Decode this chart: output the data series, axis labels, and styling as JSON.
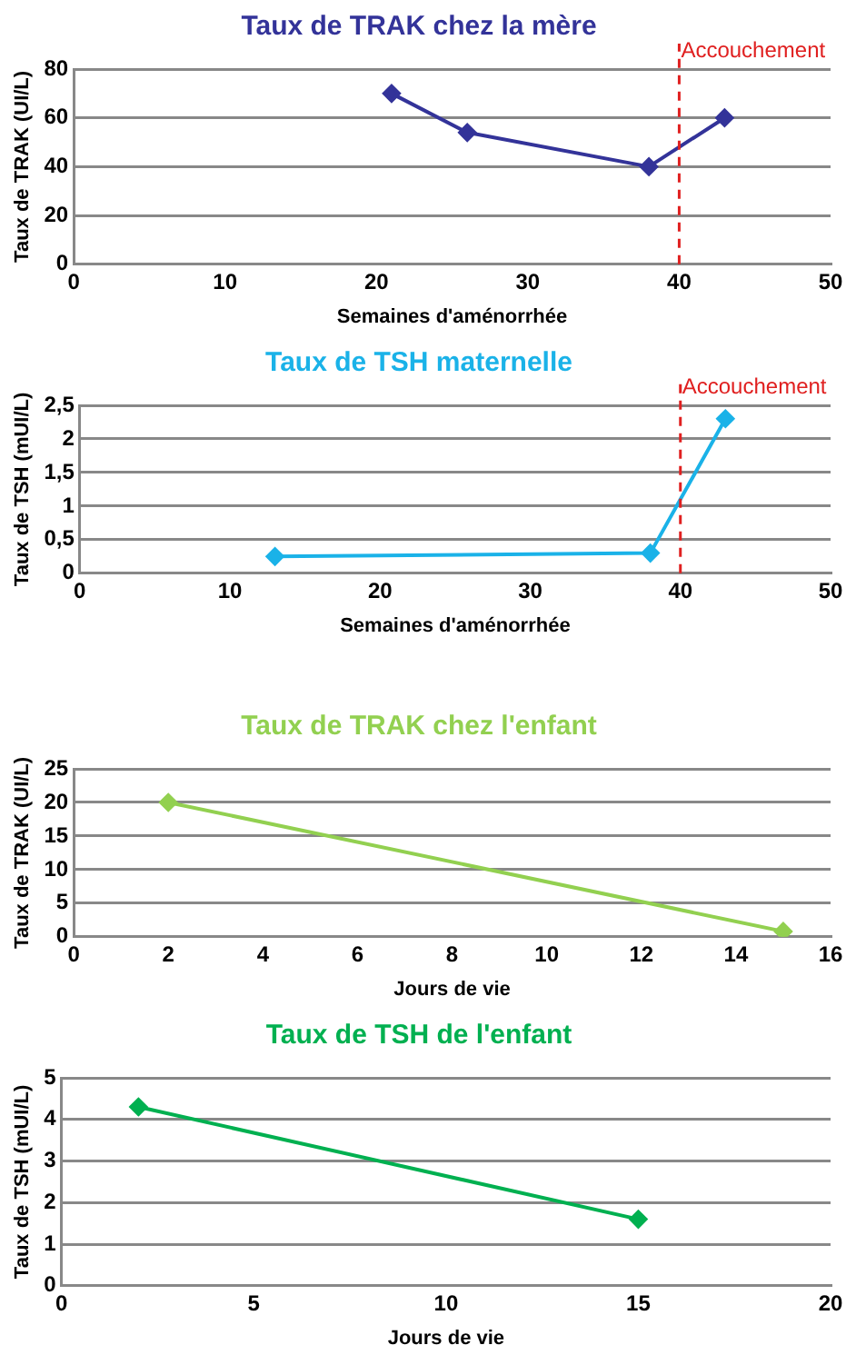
{
  "chart_data": [
    {
      "type": "line",
      "title": "Taux de TRAK chez la mère",
      "xlabel": "Semaines d'aménorrhée",
      "ylabel": "Taux de TRAK (UI/L)",
      "xlim": [
        0,
        50
      ],
      "xticks": [
        0,
        10,
        20,
        30,
        40,
        50
      ],
      "ylim": [
        0,
        80
      ],
      "yticks": [
        0,
        20,
        40,
        60,
        80
      ],
      "grid": "y",
      "marker": "diamond",
      "legend": false,
      "series": [
        {
          "color": "#333399",
          "x": [
            21,
            26,
            38,
            43
          ],
          "values": [
            70,
            54,
            40,
            60
          ]
        }
      ],
      "ref_lines": [
        {
          "axis": "x",
          "value": 40,
          "label": "Accouchement",
          "color": "#e02020",
          "line_style": "dashed"
        }
      ]
    },
    {
      "type": "line",
      "title": "Taux de TSH maternelle",
      "xlabel": "Semaines d'aménorrhée",
      "ylabel": "Taux de TSH (mUI/L)",
      "xlim": [
        0,
        50
      ],
      "xticks": [
        0,
        10,
        20,
        30,
        40,
        50
      ],
      "ylim": [
        0,
        2.5
      ],
      "yticks": [
        0,
        {
          "value": 0.5,
          "label": "0,5"
        },
        1,
        {
          "value": 1.5,
          "label": "1,5"
        },
        2,
        {
          "value": 2.5,
          "label": "2,5"
        }
      ],
      "grid": "y",
      "marker": "diamond",
      "legend": false,
      "series": [
        {
          "color": "#1ab2e8",
          "x": [
            13,
            38,
            43
          ],
          "values": [
            0.25,
            0.3,
            2.3
          ]
        }
      ],
      "ref_lines": [
        {
          "axis": "x",
          "value": 40,
          "label": "Accouchement",
          "color": "#e02020",
          "line_style": "dashed"
        }
      ]
    },
    {
      "type": "line",
      "title": "Taux de TRAK chez l'enfant",
      "xlabel": "Jours de vie",
      "ylabel": "Taux de TRAK (UI/L)",
      "xlim": [
        0,
        16
      ],
      "xticks": [
        0,
        2,
        4,
        6,
        8,
        10,
        12,
        14,
        16
      ],
      "ylim": [
        0,
        25
      ],
      "yticks": [
        0,
        5,
        10,
        15,
        20,
        25
      ],
      "grid": "y",
      "marker": "diamond",
      "legend": false,
      "series": [
        {
          "color": "#92d050",
          "x": [
            2,
            15
          ],
          "values": [
            20,
            0.8
          ]
        }
      ]
    },
    {
      "type": "line",
      "title": "Taux de TSH de l'enfant",
      "xlabel": "Jours de vie",
      "ylabel": "Taux de TSH (mUI/L)",
      "xlim": [
        0,
        20
      ],
      "xticks": [
        0,
        5,
        10,
        15,
        20
      ],
      "ylim": [
        0,
        5
      ],
      "yticks": [
        0,
        1,
        2,
        3,
        4,
        5
      ],
      "grid": "y",
      "marker": "diamond",
      "legend": false,
      "series": [
        {
          "color": "#00b050",
          "x": [
            2,
            15
          ],
          "values": [
            4.3,
            1.6
          ]
        }
      ]
    }
  ]
}
